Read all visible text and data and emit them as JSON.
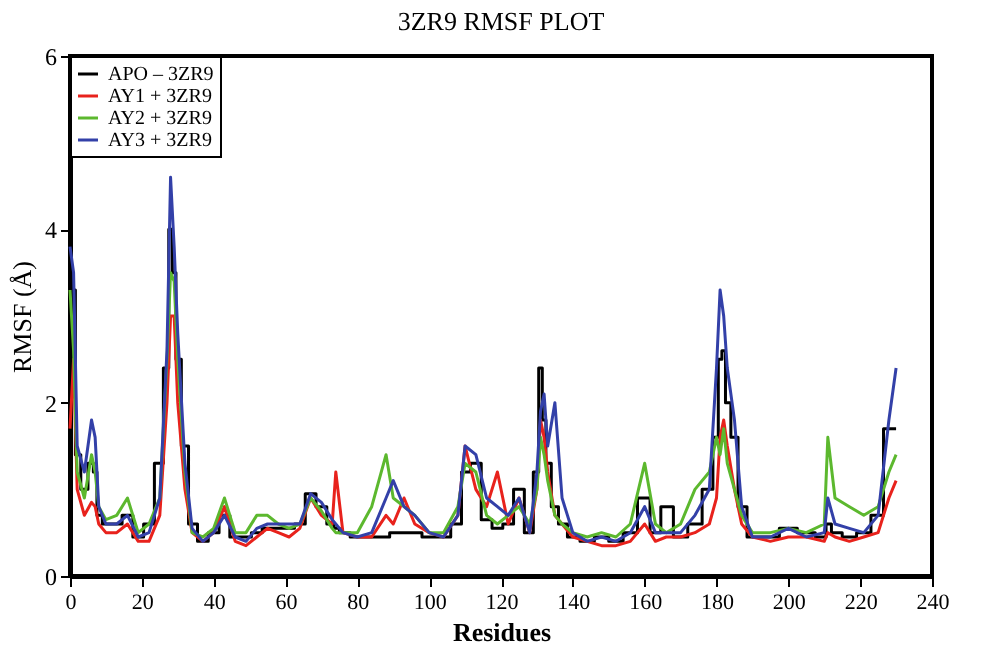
{
  "chart_data": {
    "type": "line",
    "title": "3ZR9 RMSF PLOT",
    "xlabel": "Residues",
    "ylabel": "RMSF (Å)",
    "x": [
      0,
      1,
      2,
      4,
      6,
      7,
      8,
      10,
      13,
      16,
      19,
      22,
      25,
      27,
      28,
      29,
      30,
      32,
      34,
      37,
      40,
      43,
      46,
      49,
      52,
      55,
      58,
      61,
      64,
      67,
      70,
      73,
      74,
      76,
      80,
      84,
      88,
      90,
      93,
      96,
      100,
      104,
      108,
      110,
      113,
      116,
      119,
      122,
      125,
      128,
      130,
      131,
      132,
      133,
      135,
      137,
      140,
      144,
      148,
      152,
      156,
      160,
      163,
      166,
      170,
      174,
      178,
      180,
      181,
      182,
      183,
      185,
      187,
      190,
      195,
      200,
      205,
      210,
      211,
      213,
      217,
      221,
      225,
      228,
      230
    ],
    "series": [
      {
        "name": "APO – 3ZR9",
        "color": "#000000",
        "type": "step",
        "values": [
          2.4,
          3.3,
          1.4,
          1.0,
          1.3,
          1.2,
          0.7,
          0.6,
          0.6,
          0.7,
          0.45,
          0.6,
          1.3,
          2.4,
          4.0,
          3.5,
          2.5,
          1.5,
          0.6,
          0.4,
          0.5,
          0.7,
          0.45,
          0.45,
          0.5,
          0.55,
          0.55,
          0.55,
          0.6,
          0.95,
          0.8,
          0.6,
          0.55,
          0.5,
          0.45,
          0.45,
          0.45,
          0.5,
          0.5,
          0.5,
          0.45,
          0.45,
          0.6,
          1.2,
          1.3,
          0.65,
          0.55,
          0.6,
          1.0,
          0.5,
          1.2,
          2.4,
          1.8,
          1.3,
          0.8,
          0.6,
          0.45,
          0.4,
          0.45,
          0.4,
          0.5,
          0.9,
          0.5,
          0.8,
          0.45,
          0.6,
          1.0,
          1.6,
          2.5,
          2.6,
          2.0,
          1.6,
          0.8,
          0.45,
          0.45,
          0.55,
          0.5,
          0.45,
          0.6,
          0.5,
          0.45,
          0.5,
          0.7,
          1.7,
          1.7
        ]
      },
      {
        "name": "AY1 + 3ZR9",
        "color": "#e8221c",
        "type": "line",
        "values": [
          1.7,
          2.5,
          1.0,
          0.7,
          0.85,
          0.8,
          0.6,
          0.5,
          0.5,
          0.6,
          0.4,
          0.4,
          0.7,
          2.0,
          3.0,
          3.0,
          2.0,
          1.0,
          0.5,
          0.4,
          0.5,
          0.8,
          0.4,
          0.35,
          0.45,
          0.55,
          0.5,
          0.45,
          0.55,
          0.9,
          0.7,
          0.6,
          1.2,
          0.5,
          0.45,
          0.45,
          0.7,
          0.6,
          0.9,
          0.6,
          0.5,
          0.45,
          0.7,
          1.5,
          1.0,
          0.8,
          1.2,
          0.6,
          0.9,
          0.5,
          1.0,
          1.8,
          1.6,
          1.2,
          0.7,
          0.6,
          0.45,
          0.4,
          0.35,
          0.35,
          0.4,
          0.6,
          0.4,
          0.45,
          0.45,
          0.5,
          0.6,
          0.9,
          1.6,
          1.8,
          1.5,
          1.0,
          0.6,
          0.45,
          0.4,
          0.45,
          0.45,
          0.4,
          0.5,
          0.45,
          0.4,
          0.45,
          0.5,
          0.9,
          1.1
        ]
      },
      {
        "name": "AY2 + 3ZR9",
        "color": "#5cb82e",
        "type": "line",
        "values": [
          3.3,
          2.6,
          1.2,
          0.9,
          1.4,
          1.2,
          0.8,
          0.65,
          0.7,
          0.9,
          0.5,
          0.6,
          0.9,
          2.5,
          3.5,
          3.4,
          2.5,
          1.2,
          0.5,
          0.45,
          0.55,
          0.9,
          0.5,
          0.5,
          0.7,
          0.7,
          0.6,
          0.55,
          0.6,
          0.9,
          0.75,
          0.55,
          0.5,
          0.5,
          0.5,
          0.8,
          1.4,
          0.9,
          0.8,
          0.7,
          0.5,
          0.5,
          0.8,
          1.3,
          1.2,
          0.7,
          0.6,
          0.7,
          0.8,
          0.6,
          1.0,
          1.6,
          1.4,
          1.1,
          0.7,
          0.6,
          0.5,
          0.45,
          0.5,
          0.45,
          0.6,
          1.3,
          0.6,
          0.5,
          0.6,
          1.0,
          1.2,
          1.6,
          1.4,
          1.7,
          1.3,
          1.0,
          0.7,
          0.5,
          0.5,
          0.55,
          0.5,
          0.6,
          1.6,
          0.9,
          0.8,
          0.7,
          0.8,
          1.2,
          1.4
        ]
      },
      {
        "name": "AY3 + 3ZR9",
        "color": "#3340a8",
        "type": "line",
        "values": [
          3.8,
          3.5,
          1.5,
          1.2,
          1.8,
          1.6,
          0.8,
          0.6,
          0.6,
          0.7,
          0.45,
          0.5,
          0.9,
          2.6,
          4.6,
          3.8,
          2.8,
          1.3,
          0.55,
          0.4,
          0.5,
          0.7,
          0.45,
          0.4,
          0.55,
          0.6,
          0.6,
          0.6,
          0.6,
          0.95,
          0.85,
          0.65,
          0.6,
          0.5,
          0.45,
          0.5,
          0.9,
          1.1,
          0.8,
          0.7,
          0.5,
          0.45,
          0.7,
          1.5,
          1.4,
          0.9,
          0.8,
          0.7,
          0.9,
          0.5,
          1.2,
          1.9,
          2.1,
          1.5,
          2.0,
          0.9,
          0.5,
          0.4,
          0.45,
          0.4,
          0.5,
          0.8,
          0.5,
          0.5,
          0.5,
          0.7,
          1.0,
          2.4,
          3.3,
          3.0,
          2.4,
          1.8,
          0.8,
          0.45,
          0.45,
          0.55,
          0.45,
          0.5,
          0.9,
          0.6,
          0.55,
          0.5,
          0.7,
          1.8,
          2.4
        ]
      }
    ],
    "xlim": [
      0,
      240
    ],
    "xticks": [
      0,
      20,
      40,
      60,
      80,
      100,
      120,
      140,
      160,
      180,
      200,
      220,
      240
    ],
    "ylim": [
      0,
      6
    ],
    "yticks": [
      0,
      2,
      4,
      6
    ],
    "grid": false,
    "legend": "top left",
    "marker": "none",
    "line_style": "solid"
  }
}
